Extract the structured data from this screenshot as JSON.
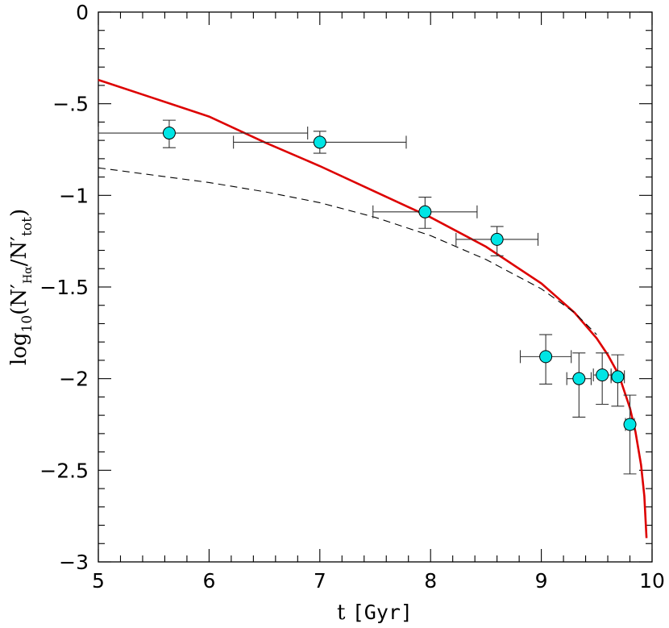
{
  "chart_data": {
    "type": "scatter",
    "xlabel": {
      "prefix": "t ",
      "unit": "[Gyr]"
    },
    "ylabel": {
      "log": "log",
      "base": "10",
      "open": "(N′",
      "num_sub": "Hα",
      "slash": "/N′",
      "den_sub": "tot",
      "close": ")"
    },
    "xlim": [
      5,
      10
    ],
    "ylim": [
      -3,
      0
    ],
    "x_ticks": [
      5,
      6,
      7,
      8,
      9,
      10
    ],
    "x_tick_labels": [
      "5",
      "6",
      "7",
      "8",
      "9",
      "10"
    ],
    "y_ticks": [
      0,
      -0.5,
      -1,
      -1.5,
      -2,
      -2.5,
      -3
    ],
    "y_tick_labels": [
      "0",
      "−.5",
      "−1",
      "−1.5",
      "−2",
      "−2.5",
      "−3"
    ],
    "grid": false,
    "colors": {
      "points": "#00e5e5",
      "errorbars": "#333333",
      "model_fit": "#dd0000",
      "model_alt": "#000000"
    },
    "points": [
      {
        "x": 5.64,
        "y": -0.66,
        "xerr": [
          0.64,
          1.25
        ],
        "yerr": [
          0.08,
          0.07
        ]
      },
      {
        "x": 7.0,
        "y": -0.71,
        "xerr": [
          0.78,
          0.78
        ],
        "yerr": [
          0.06,
          0.06
        ]
      },
      {
        "x": 7.95,
        "y": -1.09,
        "xerr": [
          0.47,
          0.47
        ],
        "yerr": [
          0.09,
          0.08
        ]
      },
      {
        "x": 8.6,
        "y": -1.24,
        "xerr": [
          0.37,
          0.37
        ],
        "yerr": [
          0.09,
          0.07
        ]
      },
      {
        "x": 9.04,
        "y": -1.88,
        "xerr": [
          0.23,
          0.23
        ],
        "yerr": [
          0.15,
          0.12
        ]
      },
      {
        "x": 9.34,
        "y": -2.0,
        "xerr": [
          0.11,
          0.11
        ],
        "yerr": [
          0.21,
          0.14
        ]
      },
      {
        "x": 9.55,
        "y": -1.98,
        "xerr": [
          0.08,
          0.08
        ],
        "yerr": [
          0.16,
          0.12
        ]
      },
      {
        "x": 9.69,
        "y": -1.99,
        "xerr": [
          0.06,
          0.06
        ],
        "yerr": [
          0.16,
          0.12
        ]
      },
      {
        "x": 9.8,
        "y": -2.25,
        "xerr": [
          0.04,
          0.04
        ],
        "yerr": [
          0.27,
          0.16
        ]
      }
    ],
    "series": [
      {
        "style": "solid",
        "x": [
          5.0,
          5.5,
          6.0,
          6.5,
          7.0,
          7.5,
          8.0,
          8.5,
          9.0,
          9.3,
          9.5,
          9.6,
          9.7,
          9.8,
          9.85,
          9.9,
          9.93,
          9.95
        ],
        "y": [
          -0.37,
          -0.47,
          -0.57,
          -0.71,
          -0.84,
          -0.98,
          -1.12,
          -1.28,
          -1.48,
          -1.64,
          -1.78,
          -1.87,
          -1.98,
          -2.16,
          -2.29,
          -2.47,
          -2.64,
          -2.87
        ]
      },
      {
        "style": "dashed",
        "x": [
          5.0,
          5.5,
          6.0,
          6.5,
          7.0,
          7.5,
          8.0,
          8.5,
          9.0,
          9.3,
          9.5
        ],
        "y": [
          -0.85,
          -0.89,
          -0.93,
          -0.98,
          -1.04,
          -1.12,
          -1.22,
          -1.35,
          -1.51,
          -1.64,
          -1.76
        ]
      }
    ]
  }
}
